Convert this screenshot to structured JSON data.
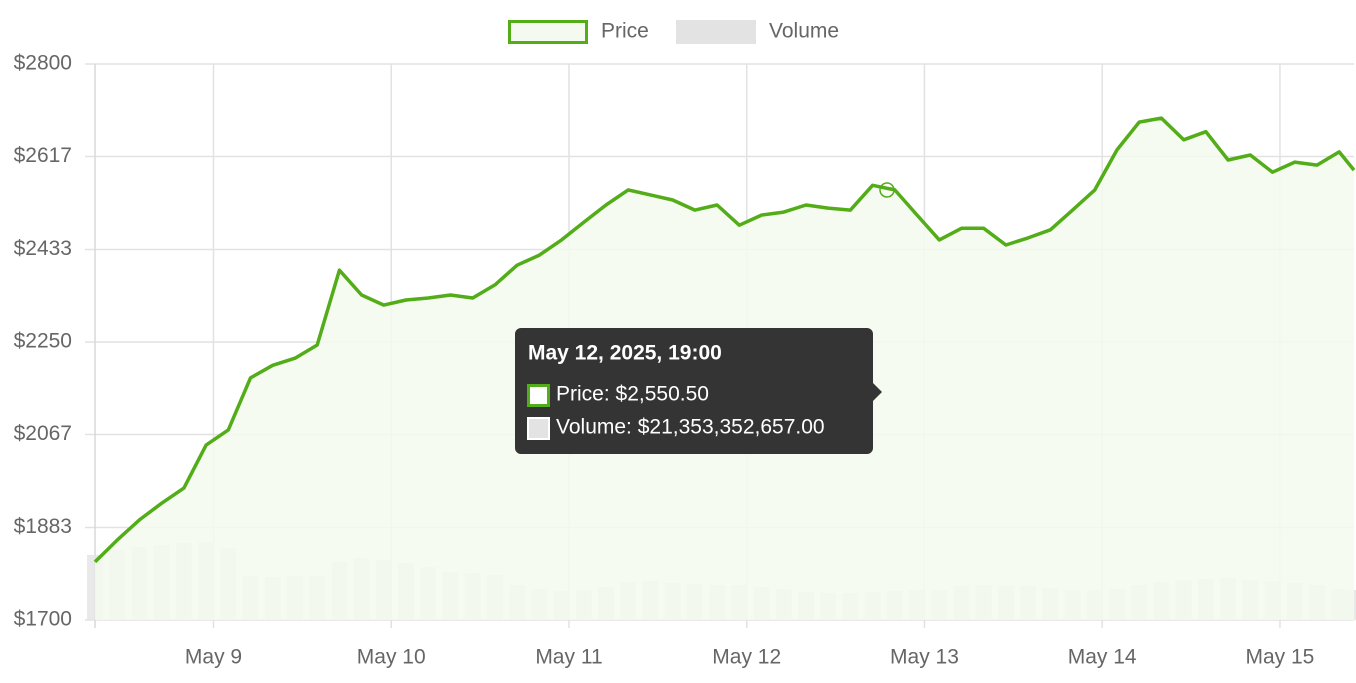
{
  "chart_data": {
    "type": "line",
    "legend": "top",
    "grid": true,
    "x": [
      "2025-05-08T08:00",
      "2025-05-08T11:00",
      "2025-05-08T14:00",
      "2025-05-08T17:00",
      "2025-05-08T20:00",
      "2025-05-08T23:00",
      "2025-05-09T02:00",
      "2025-05-09T05:00",
      "2025-05-09T08:00",
      "2025-05-09T11:00",
      "2025-05-09T14:00",
      "2025-05-09T17:00",
      "2025-05-09T20:00",
      "2025-05-09T23:00",
      "2025-05-10T02:00",
      "2025-05-10T05:00",
      "2025-05-10T08:00",
      "2025-05-10T11:00",
      "2025-05-10T14:00",
      "2025-05-10T17:00",
      "2025-05-10T20:00",
      "2025-05-10T23:00",
      "2025-05-11T02:00",
      "2025-05-11T05:00",
      "2025-05-11T08:00",
      "2025-05-11T11:00",
      "2025-05-11T14:00",
      "2025-05-11T17:00",
      "2025-05-11T20:00",
      "2025-05-11T23:00",
      "2025-05-12T02:00",
      "2025-05-12T05:00",
      "2025-05-12T08:00",
      "2025-05-12T11:00",
      "2025-05-12T14:00",
      "2025-05-12T17:00",
      "2025-05-12T20:00",
      "2025-05-12T23:00",
      "2025-05-13T02:00",
      "2025-05-13T05:00",
      "2025-05-13T08:00",
      "2025-05-13T11:00",
      "2025-05-13T14:00",
      "2025-05-13T17:00",
      "2025-05-13T20:00",
      "2025-05-13T23:00",
      "2025-05-14T02:00",
      "2025-05-14T05:00",
      "2025-05-14T08:00",
      "2025-05-14T11:00",
      "2025-05-14T14:00",
      "2025-05-14T17:00",
      "2025-05-14T20:00",
      "2025-05-14T23:00",
      "2025-05-15T02:00",
      "2025-05-15T05:00",
      "2025-05-15T08:00",
      "2025-05-15T10:00"
    ],
    "series": [
      {
        "name": "Price",
        "color": "#52ad18",
        "fill": "#f4faef",
        "values": [
          1815,
          1858,
          1898,
          1931,
          1961,
          2046,
          2076,
          2179,
          2204,
          2218,
          2244,
          2392,
          2343,
          2323,
          2333,
          2337,
          2343,
          2337,
          2363,
          2402,
          2422,
          2452,
          2487,
          2521,
          2551,
          2541,
          2531,
          2511,
          2521,
          2481,
          2501,
          2507,
          2521,
          2515,
          2511,
          2560,
          2551,
          2501,
          2452,
          2475,
          2475,
          2442,
          2456,
          2472,
          2511,
          2551,
          2630,
          2685,
          2693,
          2650,
          2666,
          2610,
          2620,
          2586,
          2606,
          2600,
          2626,
          2590
        ]
      },
      {
        "name": "Volume",
        "color": "#e3e3e3",
        "axis": "y2",
        "values": [
          49100000000,
          52900000000,
          55100000000,
          56700000000,
          58200000000,
          58900000000,
          54400000000,
          33200000000,
          32500000000,
          33200000000,
          33200000000,
          43800000000,
          46800000000,
          45300000000,
          43100000000,
          40000000000,
          36300000000,
          35500000000,
          34000000000,
          26400000000,
          23400000000,
          21900000000,
          22700000000,
          24900000000,
          28700000000,
          29500000000,
          28000000000,
          27200000000,
          26400000000,
          26400000000,
          24900000000,
          23400000000,
          21200000000,
          20400000000,
          20400000000,
          21200000000,
          21900000000,
          22700000000,
          22700000000,
          25700000000,
          26400000000,
          25700000000,
          25700000000,
          24200000000,
          22700000000,
          22700000000,
          23400000000,
          26400000000,
          28700000000,
          30200000000,
          31000000000,
          31700000000,
          30200000000,
          29500000000,
          28000000000,
          26400000000,
          23400000000,
          22700000000
        ]
      }
    ],
    "xlim": [
      "2025-05-08T08:00",
      "2025-05-15T10:00"
    ],
    "xticks": [
      {
        "value": "2025-05-09T00:00",
        "label": "May 9"
      },
      {
        "value": "2025-05-10T00:00",
        "label": "May 10"
      },
      {
        "value": "2025-05-11T00:00",
        "label": "May 11"
      },
      {
        "value": "2025-05-12T00:00",
        "label": "May 12"
      },
      {
        "value": "2025-05-13T00:00",
        "label": "May 13"
      },
      {
        "value": "2025-05-14T00:00",
        "label": "May 14"
      },
      {
        "value": "2025-05-15T00:00",
        "label": "May 15"
      }
    ],
    "ylim": [
      1700,
      2800
    ],
    "yticks": [
      {
        "value": 1700,
        "label": "$1700"
      },
      {
        "value": 1883,
        "label": "$1883"
      },
      {
        "value": 2067,
        "label": "$2067"
      },
      {
        "value": 2250,
        "label": "$2250"
      },
      {
        "value": 2433,
        "label": "$2433"
      },
      {
        "value": 2617,
        "label": "$2617"
      },
      {
        "value": 2800,
        "label": "$2800"
      }
    ],
    "y2lim": [
      0,
      420000000000
    ],
    "tooltip": {
      "title": "May 12, 2025, 19:00",
      "lines": [
        "Price: $2,550.50",
        "Volume: $21,353,352,657.00"
      ]
    }
  }
}
